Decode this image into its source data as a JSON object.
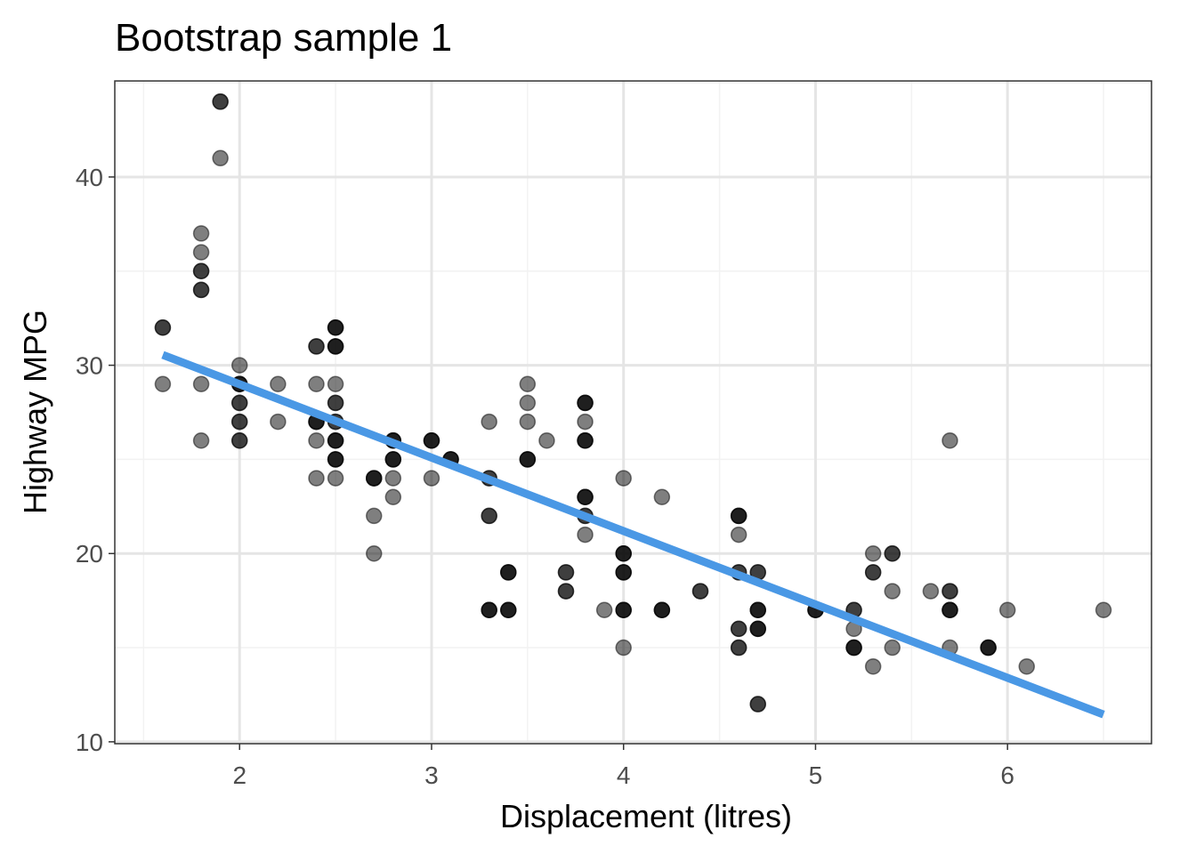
{
  "chart_data": {
    "type": "scatter",
    "title": "Bootstrap sample 1",
    "xlabel": "Displacement (litres)",
    "ylabel": "Highway MPG",
    "xlim": [
      1.35,
      6.75
    ],
    "ylim": [
      9.9,
      45.1
    ],
    "x_ticks": [
      2,
      3,
      4,
      5,
      6
    ],
    "y_ticks": [
      10,
      20,
      30,
      40
    ],
    "x_tick_labels": [
      "2",
      "3",
      "4",
      "5",
      "6"
    ],
    "y_tick_labels": [
      "10",
      "20",
      "30",
      "40"
    ],
    "grid": true,
    "legend": "none",
    "colors": {
      "point": "#000000",
      "fit_line": "#4A98E5",
      "grid_major": "#e5e5e5",
      "grid_minor": "#f2f2f2",
      "panel_border": "#333333",
      "tick_label": "#4d4d4d"
    },
    "points": [
      {
        "x": 1.6,
        "y": 32,
        "n": 2
      },
      {
        "x": 1.6,
        "y": 29,
        "n": 1
      },
      {
        "x": 1.8,
        "y": 37,
        "n": 1
      },
      {
        "x": 1.8,
        "y": 36,
        "n": 1
      },
      {
        "x": 1.8,
        "y": 35,
        "n": 2
      },
      {
        "x": 1.8,
        "y": 34,
        "n": 2
      },
      {
        "x": 1.8,
        "y": 29,
        "n": 1
      },
      {
        "x": 1.8,
        "y": 26,
        "n": 1
      },
      {
        "x": 1.9,
        "y": 44,
        "n": 2
      },
      {
        "x": 1.9,
        "y": 41,
        "n": 1
      },
      {
        "x": 2.0,
        "y": 30,
        "n": 1
      },
      {
        "x": 2.0,
        "y": 29,
        "n": 3
      },
      {
        "x": 2.0,
        "y": 28,
        "n": 2
      },
      {
        "x": 2.0,
        "y": 27,
        "n": 2
      },
      {
        "x": 2.0,
        "y": 26,
        "n": 2
      },
      {
        "x": 2.2,
        "y": 29,
        "n": 1
      },
      {
        "x": 2.2,
        "y": 27,
        "n": 1
      },
      {
        "x": 2.4,
        "y": 31,
        "n": 2
      },
      {
        "x": 2.4,
        "y": 29,
        "n": 1
      },
      {
        "x": 2.4,
        "y": 27,
        "n": 3
      },
      {
        "x": 2.4,
        "y": 26,
        "n": 1
      },
      {
        "x": 2.4,
        "y": 24,
        "n": 1
      },
      {
        "x": 2.5,
        "y": 32,
        "n": 3
      },
      {
        "x": 2.5,
        "y": 31,
        "n": 3
      },
      {
        "x": 2.5,
        "y": 29,
        "n": 1
      },
      {
        "x": 2.5,
        "y": 28,
        "n": 2
      },
      {
        "x": 2.5,
        "y": 27,
        "n": 2
      },
      {
        "x": 2.5,
        "y": 26,
        "n": 3
      },
      {
        "x": 2.5,
        "y": 25,
        "n": 3
      },
      {
        "x": 2.5,
        "y": 24,
        "n": 1
      },
      {
        "x": 2.7,
        "y": 24,
        "n": 3
      },
      {
        "x": 2.7,
        "y": 22,
        "n": 1
      },
      {
        "x": 2.7,
        "y": 20,
        "n": 1
      },
      {
        "x": 2.8,
        "y": 26,
        "n": 3
      },
      {
        "x": 2.8,
        "y": 25,
        "n": 3
      },
      {
        "x": 2.8,
        "y": 24,
        "n": 1
      },
      {
        "x": 2.8,
        "y": 23,
        "n": 1
      },
      {
        "x": 3.0,
        "y": 26,
        "n": 3
      },
      {
        "x": 3.0,
        "y": 24,
        "n": 1
      },
      {
        "x": 3.1,
        "y": 25,
        "n": 3
      },
      {
        "x": 3.3,
        "y": 27,
        "n": 1
      },
      {
        "x": 3.3,
        "y": 24,
        "n": 2
      },
      {
        "x": 3.3,
        "y": 22,
        "n": 2
      },
      {
        "x": 3.3,
        "y": 17,
        "n": 3
      },
      {
        "x": 3.4,
        "y": 19,
        "n": 3
      },
      {
        "x": 3.4,
        "y": 17,
        "n": 3
      },
      {
        "x": 3.5,
        "y": 29,
        "n": 1
      },
      {
        "x": 3.5,
        "y": 28,
        "n": 1
      },
      {
        "x": 3.5,
        "y": 27,
        "n": 1
      },
      {
        "x": 3.5,
        "y": 25,
        "n": 3
      },
      {
        "x": 3.6,
        "y": 26,
        "n": 1
      },
      {
        "x": 3.7,
        "y": 19,
        "n": 2
      },
      {
        "x": 3.7,
        "y": 18,
        "n": 2
      },
      {
        "x": 3.8,
        "y": 28,
        "n": 3
      },
      {
        "x": 3.8,
        "y": 27,
        "n": 1
      },
      {
        "x": 3.8,
        "y": 26,
        "n": 3
      },
      {
        "x": 3.8,
        "y": 23,
        "n": 3
      },
      {
        "x": 3.8,
        "y": 22,
        "n": 2
      },
      {
        "x": 3.8,
        "y": 21,
        "n": 1
      },
      {
        "x": 3.9,
        "y": 17,
        "n": 1
      },
      {
        "x": 4.0,
        "y": 24,
        "n": 1
      },
      {
        "x": 4.0,
        "y": 20,
        "n": 3
      },
      {
        "x": 4.0,
        "y": 19,
        "n": 3
      },
      {
        "x": 4.0,
        "y": 17,
        "n": 3
      },
      {
        "x": 4.0,
        "y": 15,
        "n": 1
      },
      {
        "x": 4.2,
        "y": 23,
        "n": 1
      },
      {
        "x": 4.2,
        "y": 17,
        "n": 3
      },
      {
        "x": 4.4,
        "y": 18,
        "n": 2
      },
      {
        "x": 4.6,
        "y": 22,
        "n": 3
      },
      {
        "x": 4.6,
        "y": 21,
        "n": 1
      },
      {
        "x": 4.6,
        "y": 19,
        "n": 2
      },
      {
        "x": 4.6,
        "y": 16,
        "n": 2
      },
      {
        "x": 4.6,
        "y": 15,
        "n": 2
      },
      {
        "x": 4.7,
        "y": 19,
        "n": 2
      },
      {
        "x": 4.7,
        "y": 17,
        "n": 3
      },
      {
        "x": 4.7,
        "y": 16,
        "n": 3
      },
      {
        "x": 4.7,
        "y": 12,
        "n": 2
      },
      {
        "x": 5.0,
        "y": 17,
        "n": 3
      },
      {
        "x": 5.2,
        "y": 17,
        "n": 2
      },
      {
        "x": 5.2,
        "y": 16,
        "n": 1
      },
      {
        "x": 5.2,
        "y": 15,
        "n": 3
      },
      {
        "x": 5.3,
        "y": 20,
        "n": 1
      },
      {
        "x": 5.3,
        "y": 19,
        "n": 2
      },
      {
        "x": 5.3,
        "y": 14,
        "n": 1
      },
      {
        "x": 5.4,
        "y": 20,
        "n": 2
      },
      {
        "x": 5.4,
        "y": 18,
        "n": 1
      },
      {
        "x": 5.4,
        "y": 15,
        "n": 1
      },
      {
        "x": 5.6,
        "y": 18,
        "n": 1
      },
      {
        "x": 5.7,
        "y": 26,
        "n": 1
      },
      {
        "x": 5.7,
        "y": 18,
        "n": 2
      },
      {
        "x": 5.7,
        "y": 17,
        "n": 3
      },
      {
        "x": 5.7,
        "y": 15,
        "n": 1
      },
      {
        "x": 5.9,
        "y": 15,
        "n": 3
      },
      {
        "x": 6.0,
        "y": 17,
        "n": 1
      },
      {
        "x": 6.1,
        "y": 14,
        "n": 1
      },
      {
        "x": 6.5,
        "y": 17,
        "n": 1
      }
    ],
    "fit_line": [
      {
        "x": 1.6,
        "y": 30.55
      },
      {
        "x": 6.5,
        "y": 11.45
      }
    ]
  }
}
